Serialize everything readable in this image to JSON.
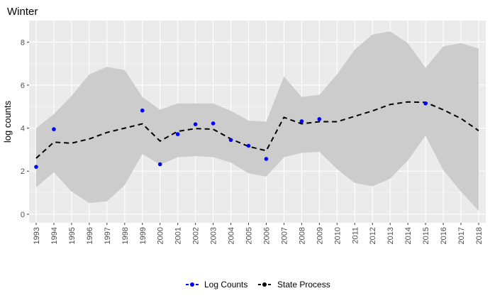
{
  "chart_data": {
    "type": "line",
    "title": "Winter",
    "xlabel": "",
    "ylabel": "log counts",
    "xlim": [
      1992.6,
      2018.4
    ],
    "ylim": [
      -0.4,
      9.0
    ],
    "x_ticks": [
      1993,
      1994,
      1995,
      1996,
      1997,
      1998,
      1999,
      2000,
      2001,
      2002,
      2003,
      2004,
      2005,
      2006,
      2007,
      2008,
      2009,
      2010,
      2011,
      2012,
      2013,
      2014,
      2015,
      2016,
      2017,
      2018
    ],
    "y_ticks": [
      0,
      2,
      4,
      6,
      8
    ],
    "grid": true,
    "legend_position": "bottom",
    "colors": {
      "panel": "#ebebeb",
      "grid_major": "#ffffff",
      "ribbon": "#cccccc",
      "points": "#0000ff",
      "state_line": "#000000"
    },
    "ribbon": {
      "x": [
        1993,
        1994,
        1995,
        1996,
        1997,
        1998,
        1999,
        2000,
        2001,
        2002,
        2003,
        2004,
        2005,
        2006,
        2007,
        2008,
        2009,
        2010,
        2011,
        2012,
        2013,
        2014,
        2015,
        2016,
        2017,
        2018
      ],
      "upper": [
        4.0,
        4.65,
        5.5,
        6.5,
        6.85,
        6.7,
        5.45,
        4.85,
        5.15,
        5.15,
        5.15,
        4.8,
        4.35,
        4.3,
        6.4,
        5.45,
        5.55,
        6.5,
        7.65,
        8.35,
        8.5,
        7.95,
        6.8,
        7.8,
        7.95,
        7.7
      ],
      "lower": [
        1.25,
        1.95,
        1.05,
        0.52,
        0.6,
        1.35,
        2.8,
        2.3,
        2.65,
        2.7,
        2.65,
        2.4,
        1.9,
        1.75,
        2.65,
        2.85,
        2.9,
        2.1,
        1.45,
        1.3,
        1.65,
        2.5,
        3.65,
        2.05,
        1.05,
        0.15
      ]
    },
    "series": [
      {
        "name": "Log Counts",
        "kind": "points",
        "x": [
          1993,
          1994,
          1999,
          2000,
          2001,
          2002,
          2003,
          2004,
          2005,
          2006,
          2008,
          2009,
          2015
        ],
        "values": [
          2.2,
          3.95,
          4.82,
          2.32,
          3.72,
          4.18,
          4.22,
          3.45,
          3.18,
          2.57,
          4.32,
          4.42,
          5.15
        ]
      },
      {
        "name": "State Process",
        "kind": "dashed-line",
        "x": [
          1993,
          1994,
          1995,
          1996,
          1997,
          1998,
          1999,
          2000,
          2001,
          2002,
          2003,
          2004,
          2005,
          2006,
          2007,
          2008,
          2009,
          2010,
          2011,
          2012,
          2013,
          2014,
          2015,
          2016,
          2017,
          2018
        ],
        "values": [
          2.6,
          3.35,
          3.3,
          3.5,
          3.8,
          4.0,
          4.2,
          3.4,
          3.85,
          3.98,
          3.95,
          3.5,
          3.15,
          2.95,
          4.5,
          4.2,
          4.3,
          4.3,
          4.55,
          4.8,
          5.1,
          5.22,
          5.2,
          4.85,
          4.45,
          3.88
        ]
      }
    ]
  }
}
